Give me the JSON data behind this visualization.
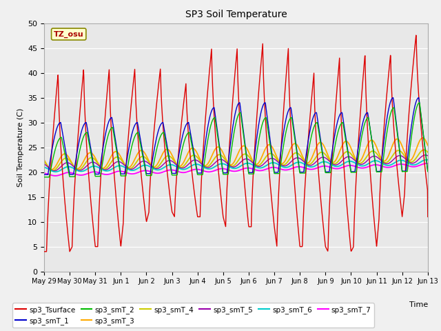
{
  "title": "SP3 Soil Temperature",
  "ylabel": "Soil Temperature (C)",
  "xlabel": "Time",
  "tz_label": "TZ_osu",
  "ylim": [
    0,
    50
  ],
  "plot_bg_color": "#e8e8e8",
  "fig_bg_color": "#f0f0f0",
  "series_colors": {
    "sp3_Tsurface": "#dd0000",
    "sp3_smT_1": "#0000cc",
    "sp3_smT_2": "#00bb00",
    "sp3_smT_3": "#ffaa00",
    "sp3_smT_4": "#cccc00",
    "sp3_smT_5": "#9900aa",
    "sp3_smT_6": "#00cccc",
    "sp3_smT_7": "#ff00ff"
  },
  "x_tick_labels": [
    "May 29",
    "May 30",
    "May 31",
    "Jun 1",
    "Jun 2",
    "Jun 3",
    "Jun 4",
    "Jun 5",
    "Jun 6",
    "Jun 7",
    "Jun 8",
    "Jun 9",
    "Jun 10",
    "Jun 11",
    "Jun 12",
    "Jun 13"
  ],
  "n_days": 15,
  "pts_per_day": 96,
  "surface_min": [
    4,
    5,
    5,
    10,
    12,
    11,
    11,
    9,
    9,
    5,
    5,
    4,
    5,
    11,
    16
  ],
  "surface_max": [
    40,
    41,
    41,
    41,
    41,
    38,
    45,
    45,
    46,
    45,
    40,
    43,
    44,
    44,
    48
  ],
  "smT1_peaks": [
    30,
    30,
    31,
    30,
    30,
    30,
    33,
    34,
    34,
    33,
    32,
    32,
    32,
    35,
    35
  ],
  "smT2_peaks": [
    27,
    28,
    29,
    28,
    28,
    28,
    31,
    32,
    31,
    31,
    30,
    30,
    31,
    33,
    34
  ]
}
